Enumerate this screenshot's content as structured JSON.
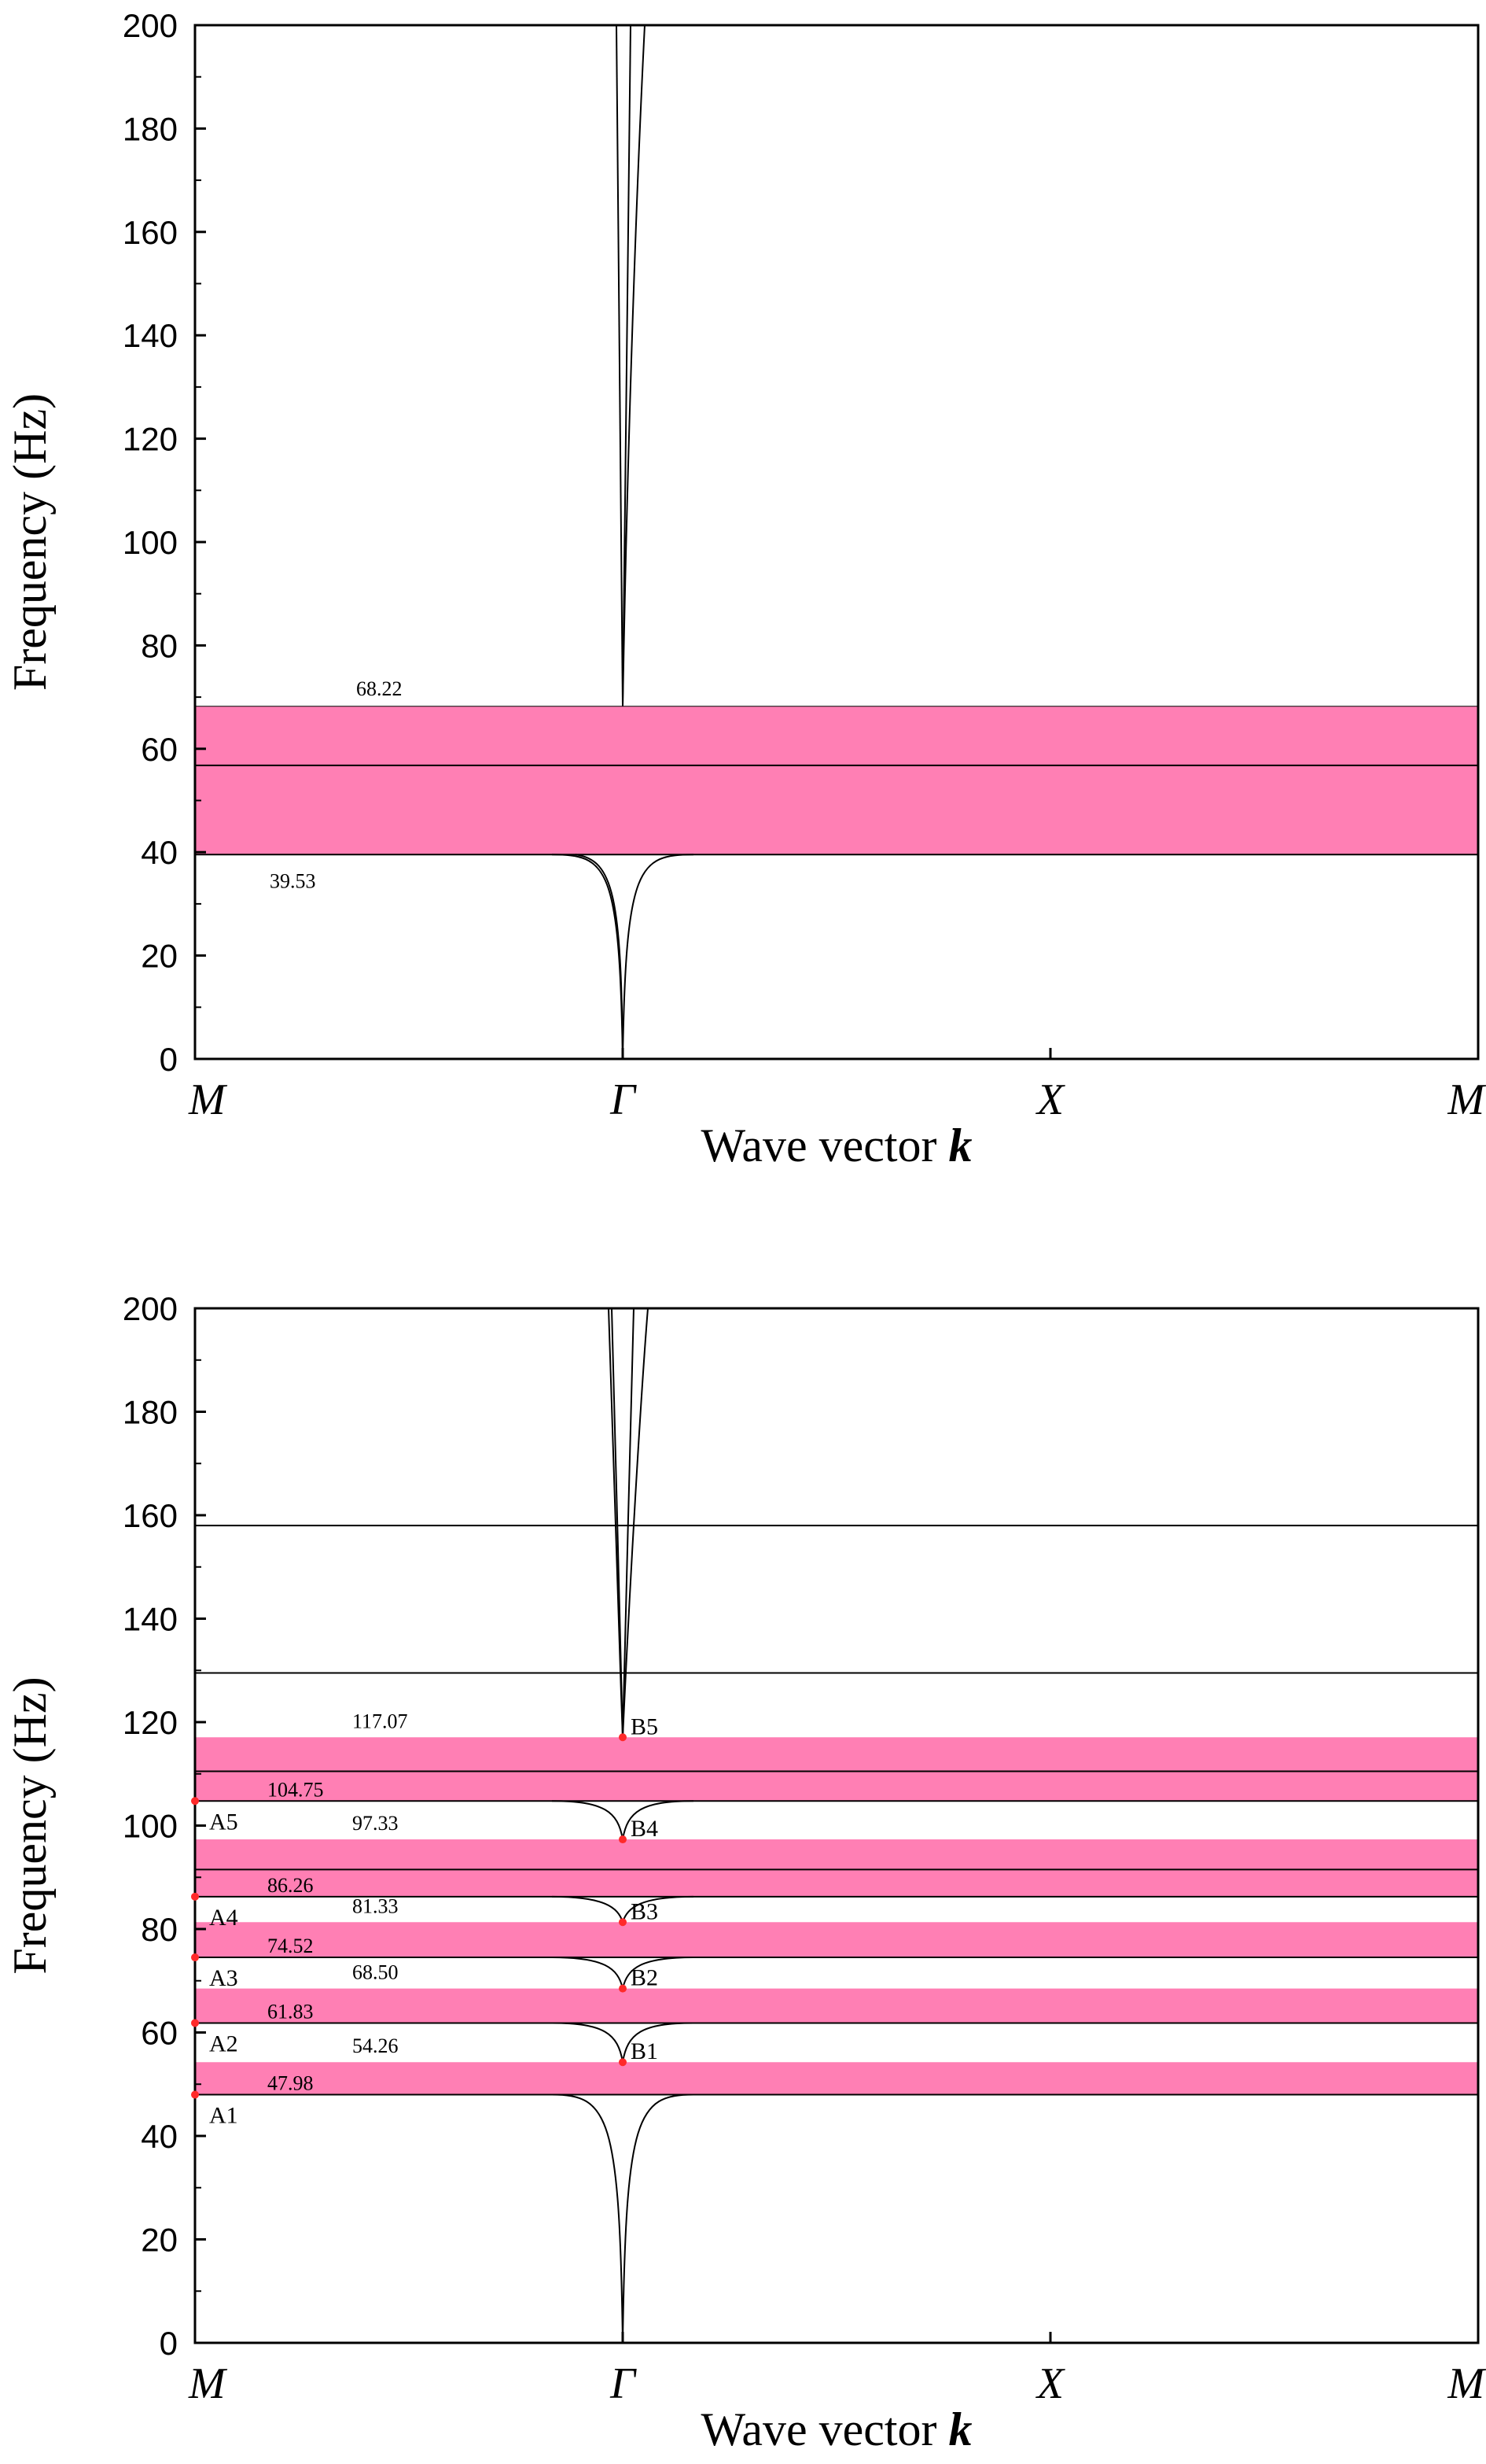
{
  "chart_data": [
    {
      "type": "band-structure",
      "ylabel": "Frequency (Hz)",
      "xlabel_text": "Wave vector ",
      "xlabel_var": "k",
      "ylim": [
        0,
        200
      ],
      "yticks": [
        0,
        20,
        40,
        60,
        80,
        100,
        120,
        140,
        160,
        180,
        200
      ],
      "xticks": [
        "M",
        "Γ",
        "X",
        "M"
      ],
      "band_color": "#ff7fb4",
      "bandgaps": [
        [
          39.53,
          68.22
        ]
      ],
      "flat_lines": [
        56.8
      ],
      "edge_points": [],
      "annotations": [
        {
          "text": "68.22",
          "x": 0.15,
          "y": 68.22
        },
        {
          "text": "39.53",
          "x": 0.08,
          "y": 39.53
        }
      ],
      "curves_below": [
        39.53
      ],
      "curves_above_start": 68.22
    },
    {
      "type": "band-structure",
      "ylabel": "Frequency (Hz)",
      "xlabel_text": "Wave vector ",
      "xlabel_var": "k",
      "ylim": [
        0,
        200
      ],
      "yticks": [
        0,
        20,
        40,
        60,
        80,
        100,
        120,
        140,
        160,
        180,
        200
      ],
      "xticks": [
        "M",
        "Γ",
        "X",
        "M"
      ],
      "band_color": "#ff7fb4",
      "bandgaps": [
        [
          47.98,
          54.26
        ],
        [
          61.83,
          68.5
        ],
        [
          74.52,
          81.33
        ],
        [
          86.26,
          97.33
        ],
        [
          104.75,
          117.07
        ]
      ],
      "flat_lines": [
        91.5,
        110.5,
        129.5,
        158.0
      ],
      "edge_points": [
        {
          "label": "A1",
          "y": 47.98,
          "pos": "M"
        },
        {
          "label": "A2",
          "y": 61.83,
          "pos": "M"
        },
        {
          "label": "A3",
          "y": 74.52,
          "pos": "M"
        },
        {
          "label": "A4",
          "y": 86.26,
          "pos": "M"
        },
        {
          "label": "A5",
          "y": 104.75,
          "pos": "M"
        },
        {
          "label": "B1",
          "y": 54.26,
          "pos": "Γ"
        },
        {
          "label": "B2",
          "y": 68.5,
          "pos": "Γ"
        },
        {
          "label": "B3",
          "y": 81.33,
          "pos": "Γ"
        },
        {
          "label": "B4",
          "y": 97.33,
          "pos": "Γ"
        },
        {
          "label": "B5",
          "y": 117.07,
          "pos": "Γ"
        }
      ],
      "annotations": [
        {
          "text": "47.98",
          "y": 47.98,
          "side": "lower"
        },
        {
          "text": "54.26",
          "y": 54.26,
          "side": "upper"
        },
        {
          "text": "61.83",
          "y": 61.83,
          "side": "lower"
        },
        {
          "text": "68.50",
          "y": 68.5,
          "side": "upper"
        },
        {
          "text": "74.52",
          "y": 74.52,
          "side": "lower"
        },
        {
          "text": "81.33",
          "y": 81.33,
          "side": "upper"
        },
        {
          "text": "86.26",
          "y": 86.26,
          "side": "lower"
        },
        {
          "text": "97.33",
          "y": 97.33,
          "side": "upper"
        },
        {
          "text": "104.75",
          "y": 104.75,
          "side": "lower"
        },
        {
          "text": "117.07",
          "y": 117.07,
          "side": "upper"
        }
      ]
    }
  ]
}
